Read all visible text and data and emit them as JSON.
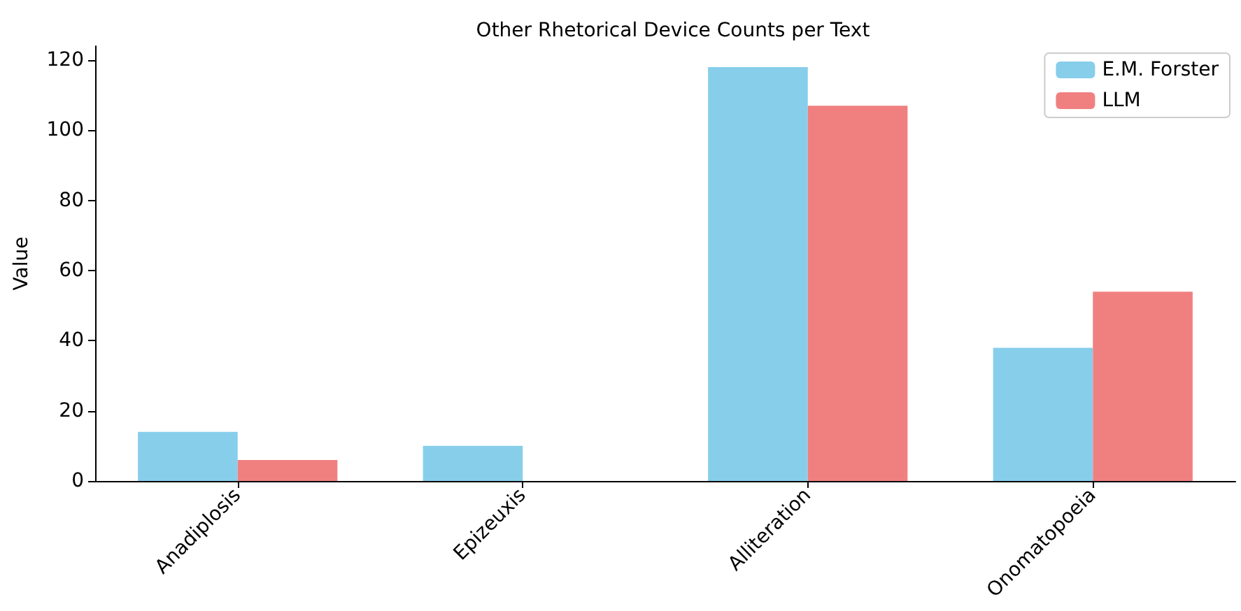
{
  "chart_data": {
    "type": "bar",
    "title": "Other Rhetorical Device Counts per Text",
    "ylabel": "Value",
    "categories": [
      "Anadiplosis",
      "Epizeuxis",
      "Alliteration",
      "Onomatopoeia"
    ],
    "series": [
      {
        "name": "E.M. Forster",
        "color": "#87ceeb",
        "values": [
          14,
          10,
          118,
          38
        ]
      },
      {
        "name": "LLM",
        "color": "#f08080",
        "values": [
          6,
          0,
          107,
          54
        ]
      }
    ],
    "ylim": [
      0,
      124
    ],
    "yticks": [
      0,
      20,
      40,
      60,
      80,
      100,
      120
    ],
    "grid": false,
    "legend": "top right"
  }
}
